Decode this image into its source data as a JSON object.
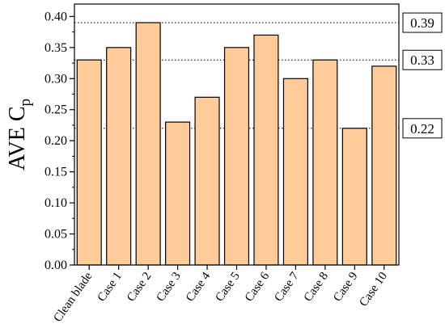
{
  "chart_data": {
    "type": "bar",
    "categories": [
      "Clean blade",
      "Case 1",
      "Case 2",
      "Case 3",
      "Case 4",
      "Case 5",
      "Case 6",
      "Case 7",
      "Case 8",
      "Case 9",
      "Case 10"
    ],
    "values": [
      0.33,
      0.35,
      0.39,
      0.23,
      0.27,
      0.35,
      0.37,
      0.3,
      0.33,
      0.22,
      0.32
    ],
    "ylabel": "AVE C",
    "ylabel_subscript": "p",
    "ylim": [
      0.0,
      0.42
    ],
    "yticks": [
      "0.00",
      "0.05",
      "0.10",
      "0.15",
      "0.20",
      "0.25",
      "0.30",
      "0.35",
      "0.40"
    ],
    "reference_lines": [
      {
        "value": 0.39,
        "label": "0.39"
      },
      {
        "value": 0.33,
        "label": "0.33"
      },
      {
        "value": 0.22,
        "label": "0.22"
      }
    ],
    "grid": false,
    "bar_color": "#FFCC99",
    "bar_edge_color": "#000000"
  }
}
